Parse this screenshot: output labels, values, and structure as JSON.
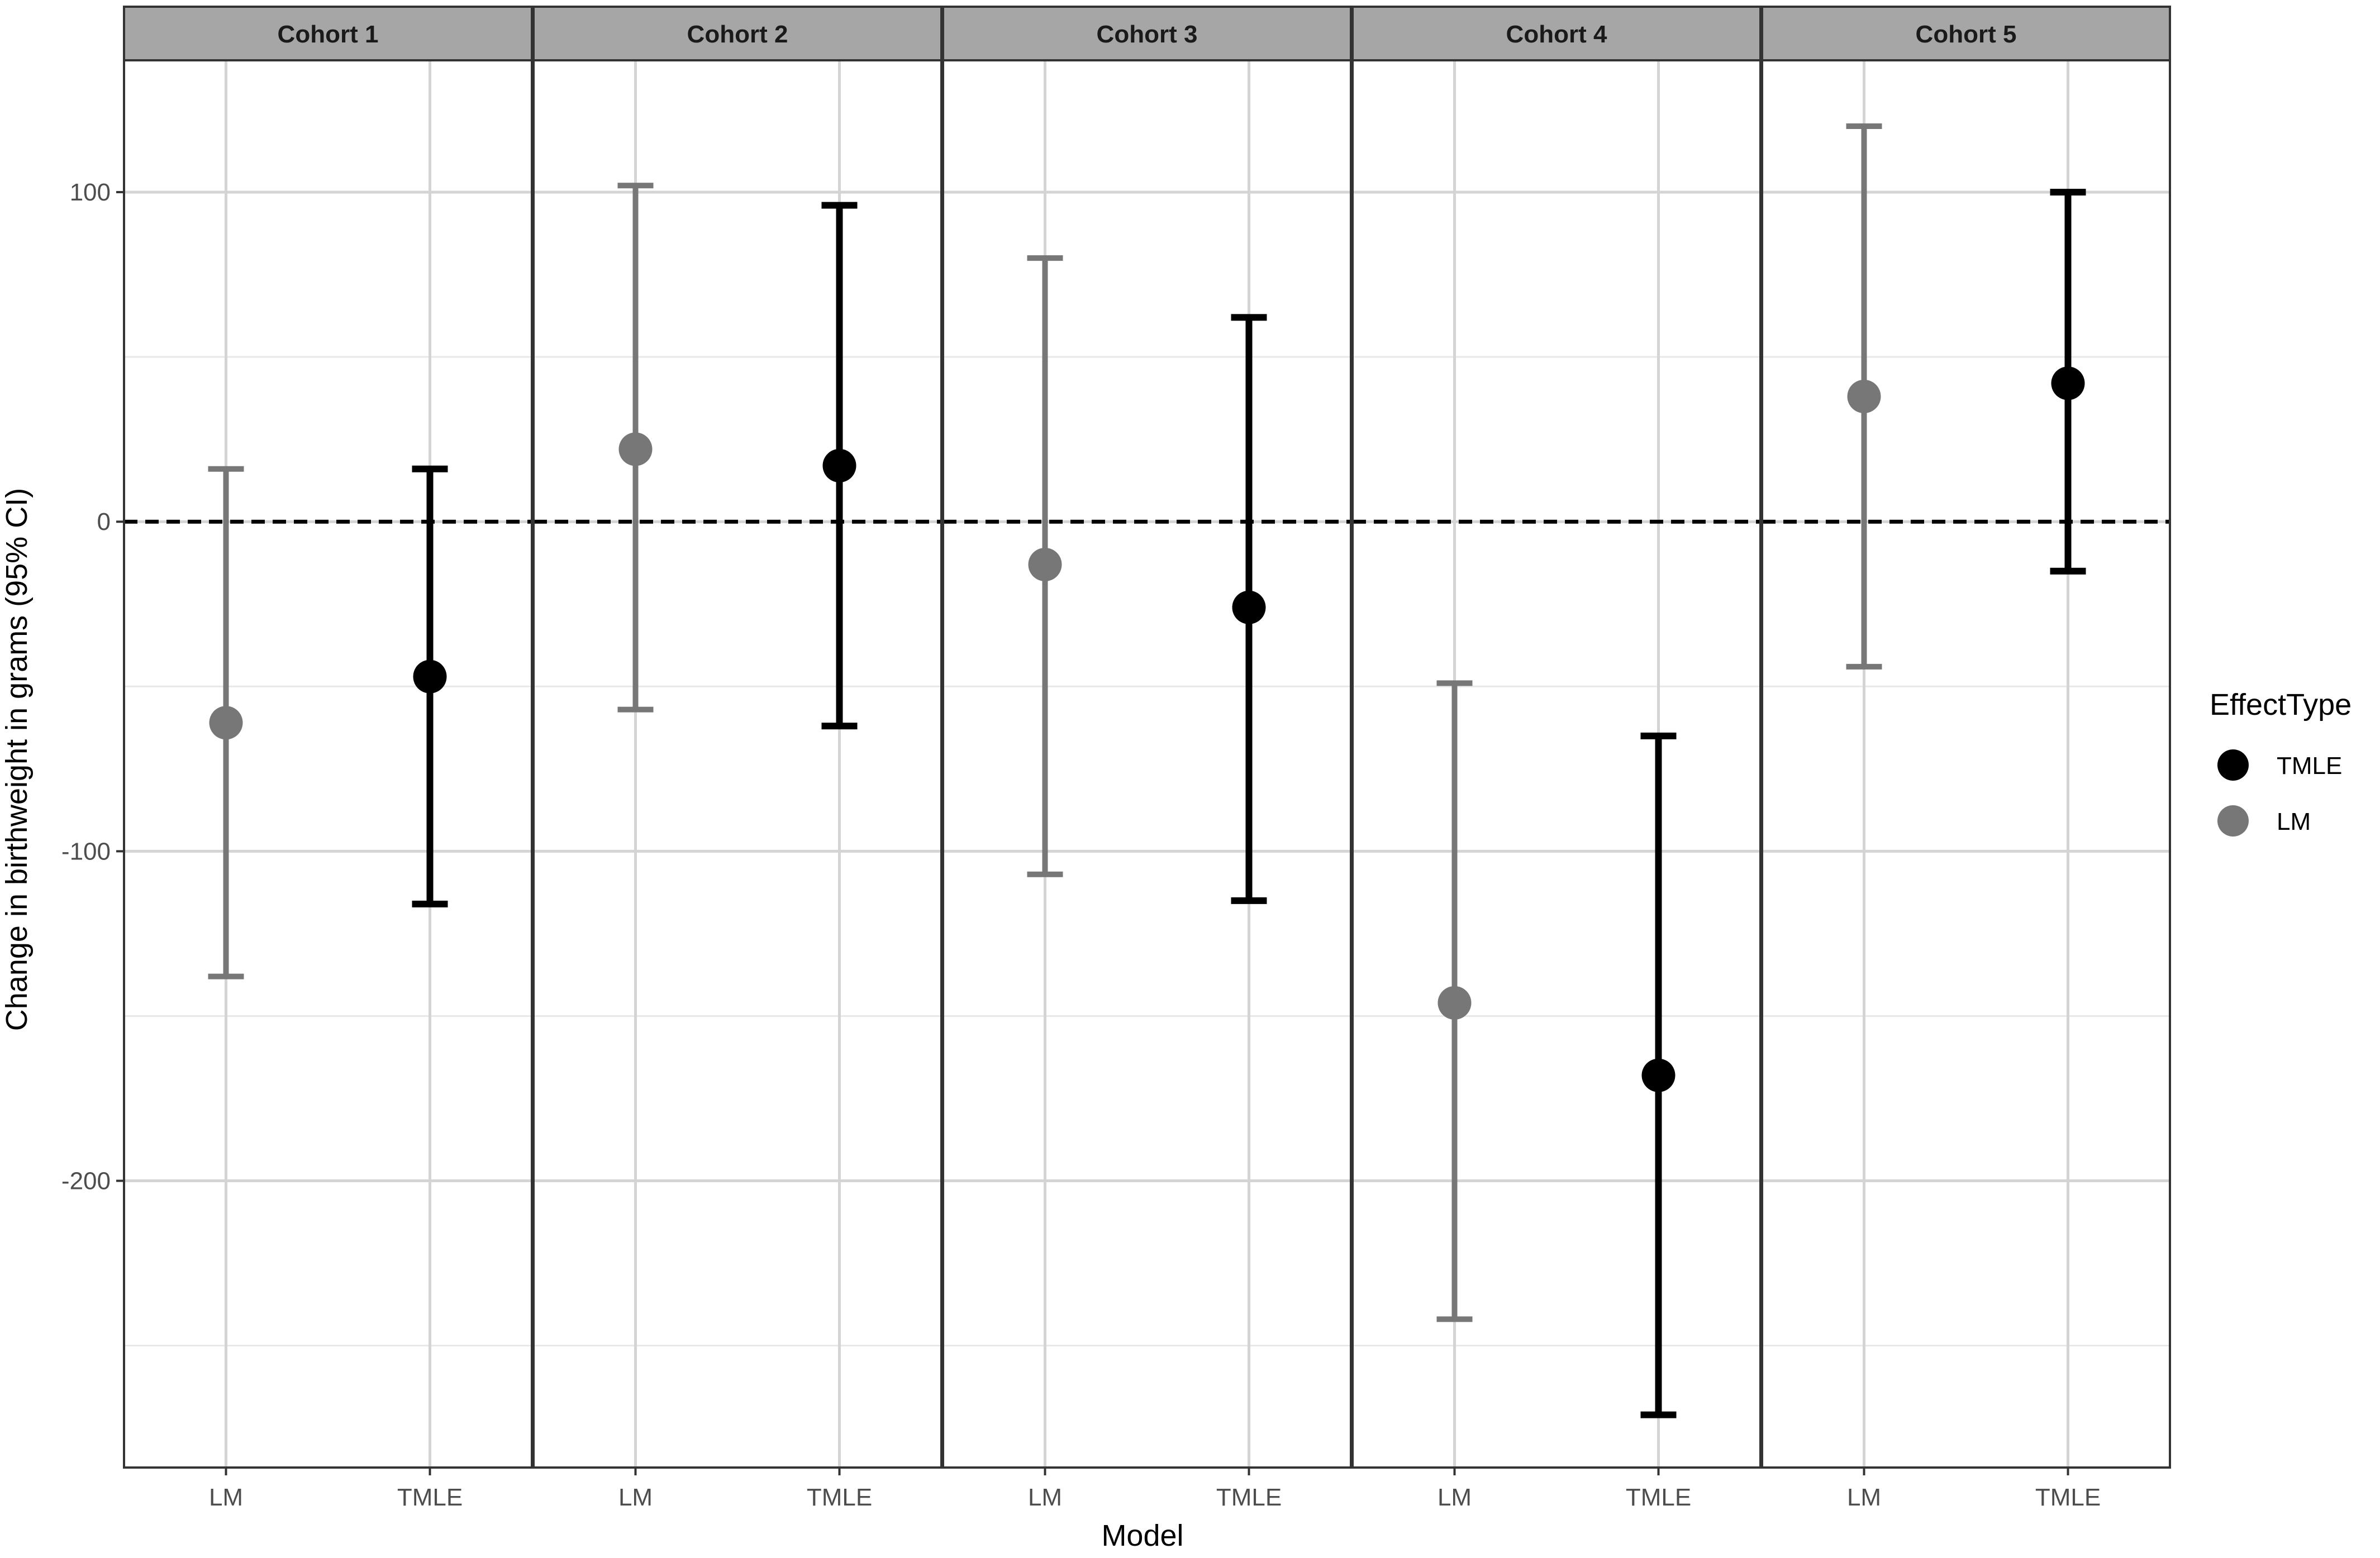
{
  "chart_data": {
    "type": "errorbar",
    "xlabel": "Model",
    "ylabel": "Change in birthweight in grams (95% CI)",
    "ylim": [
      -287,
      140
    ],
    "yticks": [
      100,
      0,
      -100,
      -200
    ],
    "ytick_labels": [
      "100",
      "0",
      "-100",
      "-200"
    ],
    "reference_line": 0,
    "categories": [
      "LM",
      "TMLE"
    ],
    "facets": [
      {
        "label": "Cohort 1",
        "points": [
          {
            "model": "LM",
            "estimate": -61,
            "lower": -138,
            "upper": 16
          },
          {
            "model": "TMLE",
            "estimate": -47,
            "lower": -116,
            "upper": 16
          }
        ]
      },
      {
        "label": "Cohort 2",
        "points": [
          {
            "model": "LM",
            "estimate": 22,
            "lower": -57,
            "upper": 102
          },
          {
            "model": "TMLE",
            "estimate": 17,
            "lower": -62,
            "upper": 96
          }
        ]
      },
      {
        "label": "Cohort 3",
        "points": [
          {
            "model": "LM",
            "estimate": -13,
            "lower": -107,
            "upper": 80
          },
          {
            "model": "TMLE",
            "estimate": -26,
            "lower": -115,
            "upper": 62
          }
        ]
      },
      {
        "label": "Cohort 4",
        "points": [
          {
            "model": "LM",
            "estimate": -146,
            "lower": -242,
            "upper": -49
          },
          {
            "model": "TMLE",
            "estimate": -168,
            "lower": -271,
            "upper": -65
          }
        ]
      },
      {
        "label": "Cohort 5",
        "points": [
          {
            "model": "LM",
            "estimate": 38,
            "lower": -44,
            "upper": 120
          },
          {
            "model": "TMLE",
            "estimate": 42,
            "lower": -15,
            "upper": 100
          }
        ]
      }
    ],
    "legend": {
      "title": "EffectType",
      "placement": "right",
      "entries": [
        {
          "label": "TMLE",
          "color": "#000000"
        },
        {
          "label": "LM",
          "color": "#777777"
        }
      ]
    },
    "colors": {
      "LM": "#777777",
      "TMLE": "#000000",
      "strip": "#a6a6a6"
    }
  }
}
